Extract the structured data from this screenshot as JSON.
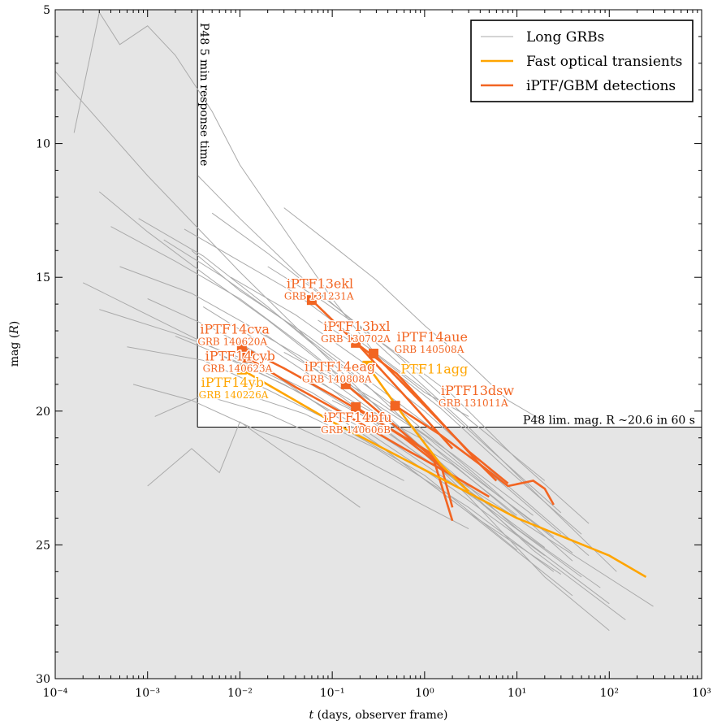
{
  "chart_data": {
    "type": "line",
    "xlabel": "t (days, observer frame)",
    "ylabel": "mag (R)",
    "x_scale": "log",
    "xlim": [
      0.0001,
      1000
    ],
    "ylim": [
      30,
      5
    ],
    "y_inverted": true,
    "grid": false,
    "x_ticks": [
      0.0001,
      0.001,
      0.01,
      0.1,
      1,
      10,
      100,
      1000
    ],
    "y_ticks": [
      5,
      10,
      15,
      20,
      25,
      30
    ],
    "legend": {
      "position": "top-right",
      "entries": [
        {
          "label": "Long GRBs",
          "color": "#aaaaaa"
        },
        {
          "label": "Fast optical transients",
          "color": "#ffa500"
        },
        {
          "label": "iPTF/GBM detections",
          "color": "#f26522"
        }
      ]
    },
    "shaded_region": {
      "response_time_days": 0.00347,
      "limiting_mag": 20.6,
      "color": "#e5e5e5"
    },
    "annotations": [
      {
        "text": "P48 5 min response time",
        "x": 0.00347,
        "y": 5
      },
      {
        "text": "P48 lim. mag. R ~20.6 in 60 s",
        "x": 850,
        "y": 20.6
      }
    ],
    "background_grb_tracks": [
      [
        [
          0.0001,
          7.3
        ],
        [
          0.001,
          11.2
        ],
        [
          0.01,
          14.8
        ],
        [
          0.1,
          18.2
        ],
        [
          1,
          21.6
        ],
        [
          10,
          24.6
        ],
        [
          100,
          27.2
        ]
      ],
      [
        [
          0.00016,
          9.6
        ],
        [
          0.0003,
          5.1
        ],
        [
          0.0005,
          6.3
        ],
        [
          0.001,
          5.6
        ],
        [
          0.002,
          6.7
        ],
        [
          0.005,
          8.8
        ],
        [
          0.01,
          10.8
        ],
        [
          0.03,
          13.2
        ],
        [
          0.1,
          15.8
        ],
        [
          0.3,
          17.9
        ],
        [
          1,
          19.3
        ],
        [
          3,
          20.2
        ]
      ],
      [
        [
          0.03,
          12.4
        ],
        [
          0.1,
          13.8
        ],
        [
          0.3,
          15.1
        ],
        [
          1,
          16.8
        ],
        [
          3,
          18.2
        ],
        [
          8,
          19.6
        ],
        [
          20,
          20.4
        ]
      ],
      [
        [
          0.0003,
          11.8
        ],
        [
          0.001,
          13.3
        ],
        [
          0.005,
          15.1
        ],
        [
          0.02,
          16.6
        ],
        [
          0.1,
          18.5
        ],
        [
          0.5,
          20.6
        ],
        [
          3,
          23.2
        ],
        [
          20,
          26.2
        ],
        [
          100,
          28.2
        ]
      ],
      [
        [
          0.0004,
          13.1
        ],
        [
          0.002,
          14.4
        ],
        [
          0.01,
          15.8
        ],
        [
          0.05,
          17.6
        ],
        [
          0.3,
          19.8
        ],
        [
          2,
          22.4
        ],
        [
          15,
          25.2
        ],
        [
          150,
          27.8
        ]
      ],
      [
        [
          0.0005,
          14.6
        ],
        [
          0.003,
          15.6
        ],
        [
          0.02,
          17.2
        ],
        [
          0.1,
          18.9
        ],
        [
          1,
          21.4
        ],
        [
          10,
          24.4
        ],
        [
          80,
          26.6
        ]
      ],
      [
        [
          0.0008,
          12.8
        ],
        [
          0.004,
          14.2
        ],
        [
          0.02,
          16.1
        ],
        [
          0.1,
          18.1
        ],
        [
          0.6,
          20.1
        ],
        [
          5,
          22.8
        ],
        [
          40,
          25.6
        ]
      ],
      [
        [
          0.001,
          15.8
        ],
        [
          0.005,
          16.9
        ],
        [
          0.03,
          18.4
        ],
        [
          0.2,
          20.1
        ],
        [
          2,
          22.5
        ],
        [
          20,
          25.1
        ]
      ],
      [
        [
          0.0015,
          13.6
        ],
        [
          0.006,
          14.9
        ],
        [
          0.03,
          16.6
        ],
        [
          0.2,
          18.8
        ],
        [
          1.5,
          21.6
        ],
        [
          12,
          24.2
        ],
        [
          300,
          27.3
        ]
      ],
      [
        [
          0.002,
          17.2
        ],
        [
          0.01,
          18.2
        ],
        [
          0.05,
          19.4
        ],
        [
          0.3,
          21.2
        ],
        [
          3,
          23.8
        ],
        [
          30,
          26.1
        ]
      ],
      [
        [
          0.0003,
          16.2
        ],
        [
          0.002,
          17.1
        ],
        [
          0.01,
          18.0
        ],
        [
          0.06,
          19.3
        ],
        [
          0.5,
          21.3
        ],
        [
          4,
          23.4
        ],
        [
          50,
          26.2
        ]
      ],
      [
        [
          0.003,
          14.0
        ],
        [
          0.01,
          15.5
        ],
        [
          0.05,
          17.1
        ],
        [
          0.4,
          19.4
        ],
        [
          4,
          22.0
        ],
        [
          30,
          24.6
        ]
      ],
      [
        [
          0.004,
          16.1
        ],
        [
          0.02,
          17.6
        ],
        [
          0.1,
          19.2
        ],
        [
          1,
          21.8
        ],
        [
          10,
          24.0
        ]
      ],
      [
        [
          0.005,
          12.6
        ],
        [
          0.02,
          14.1
        ],
        [
          0.1,
          16.0
        ],
        [
          0.5,
          17.9
        ],
        [
          3,
          20.3
        ],
        [
          20,
          22.6
        ]
      ],
      [
        [
          0.001,
          22.8
        ],
        [
          0.003,
          21.4
        ],
        [
          0.006,
          22.3
        ],
        [
          0.01,
          20.4
        ],
        [
          0.05,
          22.1
        ],
        [
          0.2,
          23.6
        ]
      ],
      [
        [
          0.006,
          17.9
        ],
        [
          0.03,
          19.0
        ],
        [
          0.2,
          20.6
        ],
        [
          2,
          22.9
        ],
        [
          20,
          25.4
        ]
      ],
      [
        [
          0.008,
          15.0
        ],
        [
          0.04,
          16.4
        ],
        [
          0.2,
          18.1
        ],
        [
          1,
          20.0
        ],
        [
          8,
          22.8
        ],
        [
          60,
          25.4
        ]
      ],
      [
        [
          0.01,
          19.3
        ],
        [
          0.05,
          20.1
        ],
        [
          0.3,
          21.4
        ],
        [
          3,
          23.6
        ],
        [
          25,
          26.0
        ]
      ],
      [
        [
          0.0002,
          15.2
        ],
        [
          0.001,
          16.4
        ],
        [
          0.005,
          17.6
        ],
        [
          0.03,
          18.9
        ],
        [
          0.3,
          21.2
        ],
        [
          3,
          23.8
        ],
        [
          40,
          26.9
        ]
      ],
      [
        [
          0.012,
          16.8
        ],
        [
          0.06,
          18.2
        ],
        [
          0.3,
          19.6
        ],
        [
          2,
          21.6
        ],
        [
          15,
          23.9
        ]
      ],
      [
        [
          0.0006,
          17.6
        ],
        [
          0.004,
          18.1
        ],
        [
          0.02,
          19.2
        ],
        [
          0.1,
          20.4
        ],
        [
          1,
          22.4
        ],
        [
          10,
          25.2
        ]
      ],
      [
        [
          0.02,
          14.6
        ],
        [
          0.08,
          15.9
        ],
        [
          0.4,
          17.6
        ],
        [
          2,
          19.4
        ],
        [
          10,
          21.8
        ],
        [
          60,
          24.2
        ]
      ],
      [
        [
          0.03,
          17.8
        ],
        [
          0.15,
          19.1
        ],
        [
          1,
          20.9
        ],
        [
          6,
          23.1
        ],
        [
          40,
          25.3
        ]
      ],
      [
        [
          0.0025,
          13.2
        ],
        [
          0.01,
          14.4
        ],
        [
          0.04,
          15.6
        ],
        [
          0.2,
          17.4
        ],
        [
          1,
          19.2
        ],
        [
          5,
          21.4
        ],
        [
          30,
          23.8
        ]
      ],
      [
        [
          0.05,
          18.6
        ],
        [
          0.2,
          19.8
        ],
        [
          1,
          21.1
        ],
        [
          5,
          22.9
        ],
        [
          25,
          24.7
        ]
      ],
      [
        [
          0.0012,
          20.2
        ],
        [
          0.004,
          19.4
        ],
        [
          0.02,
          20.1
        ],
        [
          0.1,
          21.2
        ],
        [
          0.6,
          22.6
        ]
      ],
      [
        [
          0.07,
          16.6
        ],
        [
          0.3,
          18.0
        ],
        [
          1.5,
          19.9
        ],
        [
          8,
          22.2
        ],
        [
          50,
          24.6
        ]
      ],
      [
        [
          0.1,
          19.6
        ],
        [
          0.5,
          20.8
        ],
        [
          2,
          22.0
        ],
        [
          10,
          23.9
        ]
      ],
      [
        [
          0.0007,
          19.0
        ],
        [
          0.003,
          19.6
        ],
        [
          0.015,
          20.7
        ],
        [
          0.08,
          21.6
        ],
        [
          0.5,
          23.0
        ],
        [
          3,
          24.4
        ]
      ],
      [
        [
          0.0035,
          11.2
        ],
        [
          0.01,
          12.8
        ],
        [
          0.04,
          14.8
        ],
        [
          0.15,
          16.5
        ],
        [
          0.6,
          18.4
        ],
        [
          3,
          20.6
        ],
        [
          20,
          23.4
        ],
        [
          120,
          26.0
        ]
      ]
    ],
    "series": [
      {
        "group": "iPTF/GBM detections",
        "name": "iPTF13ekl",
        "grb": "GRB 131231A",
        "points": [
          [
            0.06,
            15.85
          ],
          [
            0.2,
            17.6
          ],
          [
            0.6,
            19.4
          ],
          [
            2,
            21.4
          ]
        ]
      },
      {
        "group": "iPTF/GBM detections",
        "name": "iPTF13bxl",
        "grb": "GRB 130702A",
        "points": [
          [
            0.18,
            17.45
          ],
          [
            0.5,
            18.6
          ],
          [
            1.5,
            20.4
          ],
          [
            4,
            22.0
          ],
          [
            6,
            22.6
          ]
        ]
      },
      {
        "group": "iPTF/GBM detections",
        "name": "iPTF14aue",
        "grb": "GRB 140508A",
        "points": [
          [
            0.28,
            17.85
          ],
          [
            1,
            19.8
          ],
          [
            3,
            21.5
          ],
          [
            8,
            22.7
          ]
        ]
      },
      {
        "group": "iPTF/GBM detections",
        "name": "iPTF14cva",
        "grb": "GRB 140620A",
        "points": [
          [
            0.0105,
            17.6
          ],
          [
            0.03,
            18.4
          ],
          [
            0.1,
            19.4
          ],
          [
            0.4,
            20.6
          ],
          [
            1.2,
            21.6
          ],
          [
            2,
            24.1
          ]
        ]
      },
      {
        "group": "iPTF/GBM detections",
        "name": "iPTF14cyb",
        "grb": "GRB 140623A",
        "points": [
          [
            0.012,
            18.0
          ],
          [
            0.04,
            19.1
          ],
          [
            0.15,
            20.2
          ],
          [
            0.6,
            21.4
          ],
          [
            2,
            22.4
          ],
          [
            5,
            23.2
          ]
        ]
      },
      {
        "group": "iPTF/GBM detections",
        "name": "iPTF14eag",
        "grb": "GRB 140808A",
        "points": [
          [
            0.14,
            19.0
          ],
          [
            0.5,
            20.6
          ],
          [
            1.5,
            22.0
          ],
          [
            2,
            23.6
          ]
        ]
      },
      {
        "group": "iPTF/GBM detections",
        "name": "iPTF14bfu",
        "grb": "GRB 140606B",
        "points": [
          [
            0.18,
            19.85
          ],
          [
            0.6,
            21.0
          ],
          [
            2,
            22.4
          ],
          [
            3,
            23.0
          ]
        ]
      },
      {
        "group": "iPTF/GBM detections",
        "name": "iPTF13dsw",
        "grb": "GRB 131011A",
        "points": [
          [
            0.48,
            19.8
          ],
          [
            1.5,
            20.9
          ],
          [
            4,
            22.0
          ],
          [
            8,
            22.8
          ],
          [
            15,
            22.6
          ],
          [
            20,
            22.9
          ],
          [
            25,
            23.5
          ]
        ]
      },
      {
        "group": "Fast optical transients",
        "name": "iPTF14yb",
        "grb": "GRB 140226A",
        "points": [
          [
            0.0105,
            18.45
          ],
          [
            0.1,
            20.4
          ],
          [
            1,
            22.2
          ],
          [
            10,
            24.0
          ],
          [
            100,
            25.4
          ],
          [
            250,
            26.2
          ]
        ]
      },
      {
        "group": "Fast optical transients",
        "name": "PTF11agg",
        "grb": "",
        "points": [
          [
            0.24,
            18.3
          ],
          [
            0.6,
            20.2
          ],
          [
            1.5,
            22.0
          ],
          [
            3,
            23.0
          ]
        ]
      }
    ],
    "labels": [
      {
        "name": "iPTF13ekl",
        "sub": "GRB 131231A",
        "x": 0.032,
        "y": 15.4,
        "color": "#f26522"
      },
      {
        "name": "iPTF13bxl",
        "sub": "GRB 130702A",
        "x": 0.08,
        "y": 17.0,
        "color": "#f26522"
      },
      {
        "name": "iPTF14aue",
        "sub": "GRB 140508A",
        "x": 0.5,
        "y": 17.4,
        "color": "#f26522"
      },
      {
        "name": "iPTF14cva",
        "sub": "GRB 140620A",
        "x": 0.0037,
        "y": 17.1,
        "color": "#f26522"
      },
      {
        "name": "iPTF14cyb",
        "sub": "GRB 140623A",
        "x": 0.0042,
        "y": 18.1,
        "color": "#f26522"
      },
      {
        "name": "iPTF14yb",
        "sub": "GRB 140226A",
        "x": 0.0038,
        "y": 19.1,
        "color": "#ffa500"
      },
      {
        "name": "iPTF14eag",
        "sub": "GRB 140808A",
        "x": 0.05,
        "y": 18.5,
        "color": "#f26522"
      },
      {
        "name": "PTF11agg",
        "sub": "",
        "x": 0.55,
        "y": 18.6,
        "color": "#ffa500"
      },
      {
        "name": "iPTF13dsw",
        "sub": "GRB 131011A",
        "x": 1.5,
        "y": 19.4,
        "color": "#f26522"
      },
      {
        "name": "iPTF14bfu",
        "sub": "GRB 140606B",
        "x": 0.08,
        "y": 20.4,
        "color": "#f26522"
      }
    ]
  }
}
